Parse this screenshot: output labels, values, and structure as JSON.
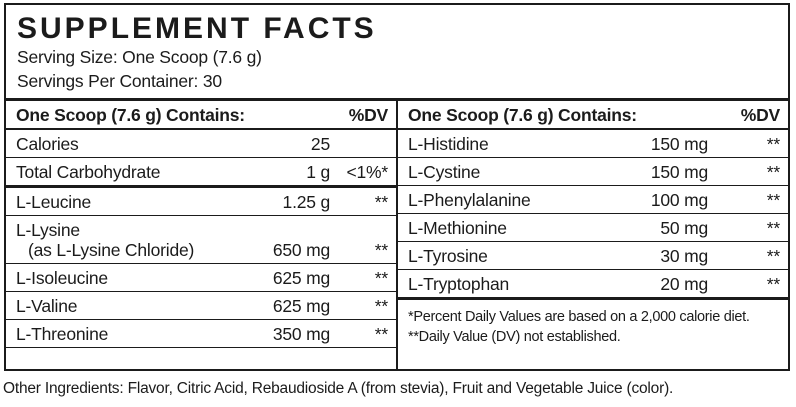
{
  "header": {
    "title": "SUPPLEMENT FACTS",
    "serving_size": "Serving Size: One Scoop (7.6 g)",
    "servings_per_container": "Servings Per Container: 30"
  },
  "columns": {
    "left": {
      "header": "One Scoop (7.6 g) Contains:",
      "dv_header": "%DV",
      "rows": [
        {
          "name": "Calories",
          "amount": "25",
          "dv": ""
        },
        {
          "name": "Total Carbohydrate",
          "amount": "1 g",
          "dv": "<1%*"
        },
        {
          "name": "L-Leucine",
          "amount": "1.25 g",
          "dv": "**"
        },
        {
          "name": "L-Lysine",
          "sub": "(as L-Lysine Chloride)",
          "amount": "650 mg",
          "dv": "**"
        },
        {
          "name": "L-Isoleucine",
          "amount": "625 mg",
          "dv": "**"
        },
        {
          "name": "L-Valine",
          "amount": "625 mg",
          "dv": "**"
        },
        {
          "name": "L-Threonine",
          "amount": "350 mg",
          "dv": "**"
        }
      ]
    },
    "right": {
      "header": "One Scoop (7.6 g) Contains:",
      "dv_header": "%DV",
      "rows": [
        {
          "name": "L-Histidine",
          "amount": "150 mg",
          "dv": "**"
        },
        {
          "name": "L-Cystine",
          "amount": "150 mg",
          "dv": "**"
        },
        {
          "name": "L-Phenylalanine",
          "amount": "100 mg",
          "dv": "**"
        },
        {
          "name": "L-Methionine",
          "amount": "50 mg",
          "dv": "**"
        },
        {
          "name": "L-Tyrosine",
          "amount": "30 mg",
          "dv": "**"
        },
        {
          "name": "L-Tryptophan",
          "amount": "20 mg",
          "dv": "**"
        }
      ],
      "footnotes": [
        "*Percent Daily Values are based on a 2,000 calorie diet.",
        "**Daily Value (DV) not established."
      ]
    }
  },
  "other_ingredients": "Other Ingredients: Flavor, Citric Acid, Rebaudioside A (from stevia), Fruit and Vegetable Juice (color)."
}
